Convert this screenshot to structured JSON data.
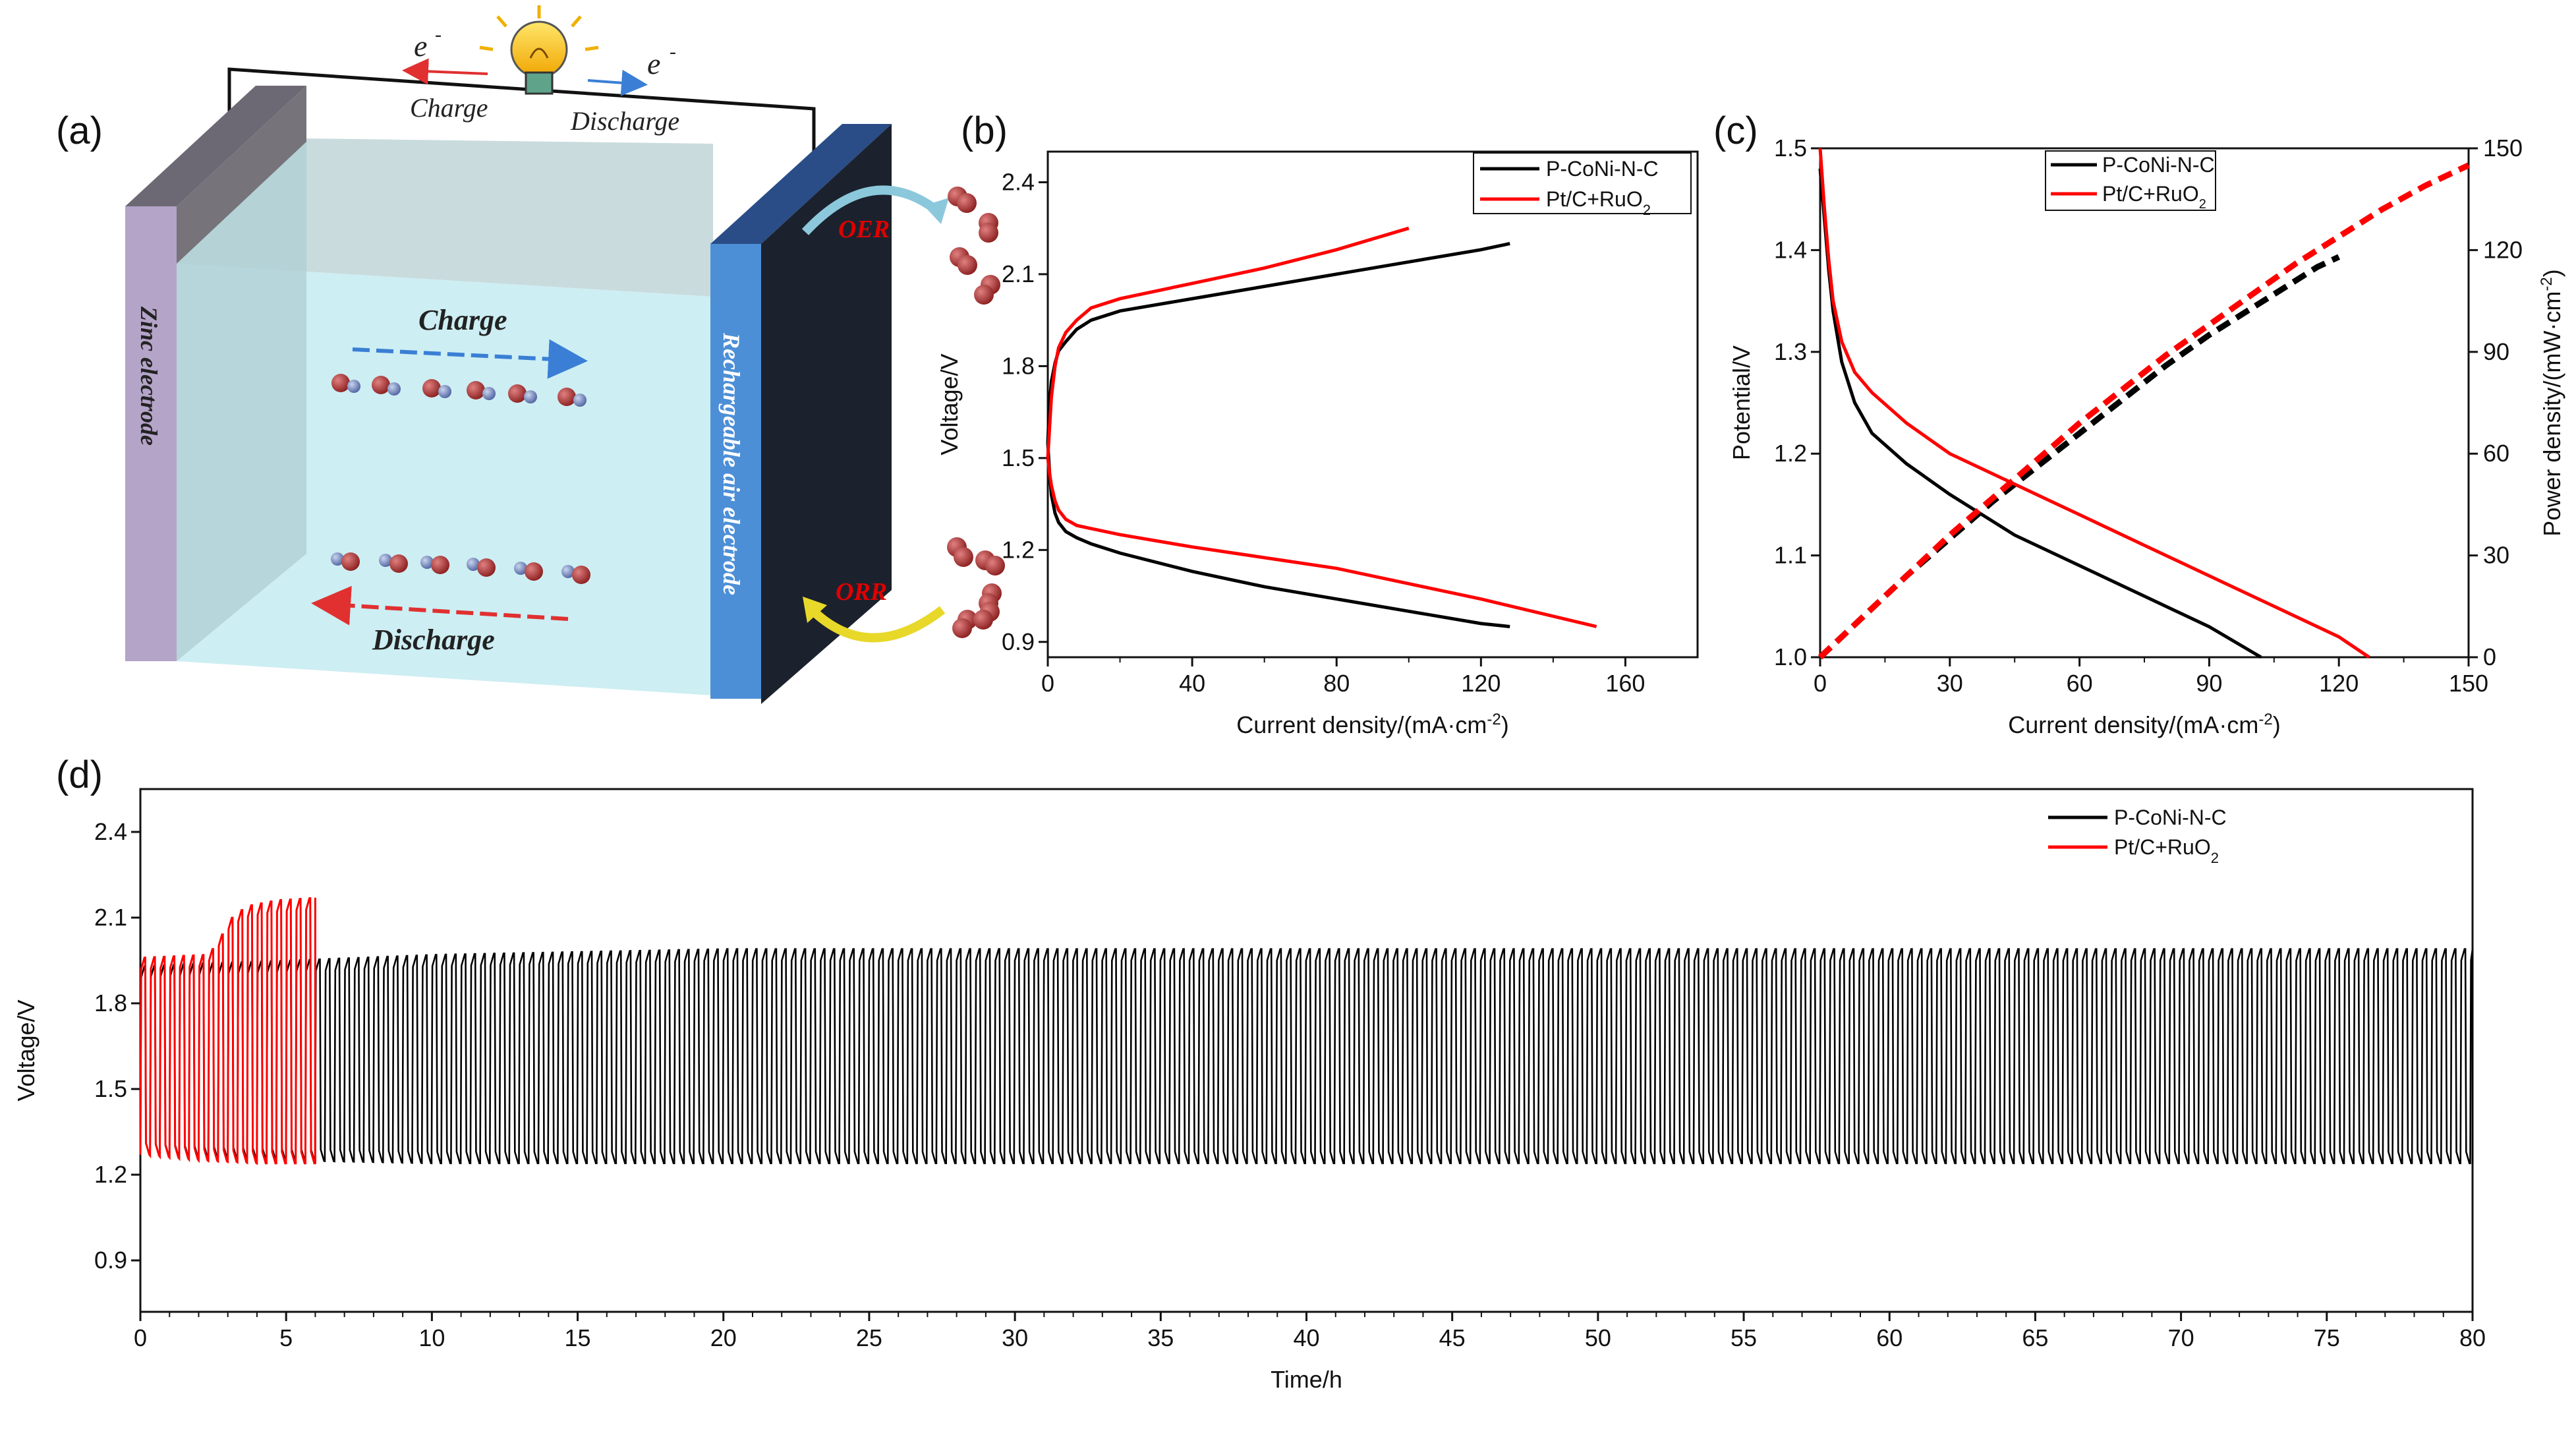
{
  "figure": {
    "labels": {
      "a": "(a)",
      "b": "(b)",
      "c": "(c)",
      "d": "(d)"
    }
  },
  "schematic": {
    "electron_left": "e",
    "electron_right": "e",
    "electron_sup": "-",
    "charge_top": "Charge",
    "discharge_top": "Discharge",
    "zinc_electrode": "Zinc electrode",
    "air_electrode": "Rechargeable air electrode",
    "charge_arrow": "Charge",
    "discharge_arrow": "Discharge",
    "oer": "OER",
    "orr": "ORR",
    "colors": {
      "charge_arrow": "#3a7fd5",
      "discharge_arrow": "#e03030",
      "oer_arrow": "#8cc8dc",
      "orr_arrow": "#e8d82a",
      "label_red": "#e00000"
    }
  },
  "chart_data": [
    {
      "id": "b",
      "type": "line",
      "xlabel": "Current density/(mA·cm",
      "xlabel_sup": "-2",
      "xlabel_tail": ")",
      "ylabel": "Voltage/V",
      "xlim": [
        0,
        180
      ],
      "ylim": [
        0.85,
        2.5
      ],
      "xticks": [
        0,
        40,
        80,
        120,
        160
      ],
      "yticks": [
        0.9,
        1.2,
        1.5,
        1.8,
        2.1,
        2.4
      ],
      "ytick_labels": [
        "0.9",
        "1.2",
        "1.5",
        "1.8",
        "2.1",
        "2.4"
      ],
      "legend_position": "top-right",
      "series": [
        {
          "name": "P-CoNi-N-C",
          "color": "#000000",
          "charge": {
            "x": [
              0,
              0.5,
              1,
              2,
              3,
              5,
              8,
              12,
              20,
              40,
              60,
              80,
              100,
              120,
              128
            ],
            "y": [
              1.55,
              1.68,
              1.75,
              1.81,
              1.85,
              1.88,
              1.92,
              1.95,
              1.98,
              2.02,
              2.06,
              2.1,
              2.14,
              2.18,
              2.2
            ]
          },
          "discharge": {
            "x": [
              0,
              0.5,
              1,
              2,
              3,
              5,
              8,
              12,
              20,
              40,
              60,
              80,
              100,
              120,
              128
            ],
            "y": [
              1.55,
              1.45,
              1.38,
              1.32,
              1.29,
              1.26,
              1.24,
              1.22,
              1.19,
              1.13,
              1.08,
              1.04,
              1.0,
              0.96,
              0.95
            ]
          }
        },
        {
          "name": "Pt/C+RuO",
          "name_sub": "2",
          "color": "#ff0000",
          "charge": {
            "x": [
              0,
              0.5,
              1,
              2,
              3,
              5,
              8,
              12,
              20,
              40,
              60,
              80,
              100
            ],
            "y": [
              1.5,
              1.6,
              1.7,
              1.8,
              1.86,
              1.91,
              1.95,
              1.99,
              2.02,
              2.07,
              2.12,
              2.18,
              2.25
            ]
          },
          "discharge": {
            "x": [
              0,
              0.5,
              1,
              2,
              3,
              5,
              8,
              12,
              20,
              40,
              80,
              120,
              152
            ],
            "y": [
              1.5,
              1.45,
              1.41,
              1.36,
              1.33,
              1.3,
              1.28,
              1.27,
              1.25,
              1.21,
              1.14,
              1.04,
              0.95
            ]
          }
        }
      ]
    },
    {
      "id": "c",
      "type": "line",
      "xlabel": "Current density/(mA·cm",
      "xlabel_sup": "-2",
      "xlabel_tail": ")",
      "ylabel": "Potential/V",
      "y2label": "Power density/(mW·cm",
      "y2label_sup": "-2",
      "y2label_tail": ")",
      "xlim": [
        0,
        150
      ],
      "ylim": [
        1.0,
        1.5
      ],
      "y2lim": [
        0,
        150
      ],
      "xticks": [
        0,
        30,
        60,
        90,
        120,
        150
      ],
      "yticks": [
        1.0,
        1.1,
        1.2,
        1.3,
        1.4,
        1.5
      ],
      "ytick_labels": [
        "1.0",
        "1.1",
        "1.2",
        "1.3",
        "1.4",
        "1.5"
      ],
      "y2ticks": [
        0,
        30,
        60,
        90,
        120,
        150
      ],
      "legend_position": "top-left",
      "series": [
        {
          "name": "P-CoNi-N-C",
          "color": "#000000",
          "polarization": {
            "x": [
              0,
              1,
              2,
              3,
              5,
              8,
              12,
              20,
              30,
              45,
              60,
              75,
              90,
              102
            ],
            "y": [
              1.48,
              1.43,
              1.38,
              1.34,
              1.29,
              1.25,
              1.22,
              1.19,
              1.16,
              1.12,
              1.09,
              1.06,
              1.03,
              1.0
            ]
          },
          "power": {
            "x": [
              0,
              10,
              20,
              30,
              40,
              50,
              60,
              70,
              80,
              90,
              100,
              110,
              115,
              120
            ],
            "y": [
              0,
              12,
              24,
              35,
              46,
              56,
              66,
              76,
              86,
              95,
              103,
              111,
              115,
              118
            ]
          }
        },
        {
          "name": "Pt/C+RuO",
          "name_sub": "2",
          "color": "#ff0000",
          "polarization": {
            "x": [
              0,
              1,
              2,
              3,
              5,
              8,
              12,
              20,
              30,
              45,
              60,
              75,
              90,
              105,
              120,
              127
            ],
            "y": [
              1.5,
              1.44,
              1.39,
              1.35,
              1.31,
              1.28,
              1.26,
              1.23,
              1.2,
              1.17,
              1.14,
              1.11,
              1.08,
              1.05,
              1.02,
              1.0
            ]
          },
          "power": {
            "x": [
              0,
              10,
              20,
              30,
              40,
              50,
              60,
              70,
              80,
              90,
              100,
              110,
              120,
              130,
              140,
              150
            ],
            "y": [
              0,
              12,
              24,
              36,
              47,
              58,
              69,
              79,
              89,
              98,
              107,
              116,
              124,
              132,
              139,
              145
            ]
          }
        }
      ]
    },
    {
      "id": "d",
      "type": "line",
      "xlabel": "Time/h",
      "ylabel": "Voltage/V",
      "xlim": [
        0,
        80
      ],
      "ylim": [
        0.72,
        2.55
      ],
      "xticks": [
        0,
        5,
        10,
        15,
        20,
        25,
        30,
        35,
        40,
        45,
        50,
        55,
        60,
        65,
        70,
        75,
        80
      ],
      "yticks": [
        0.9,
        1.2,
        1.5,
        1.8,
        2.1,
        2.4
      ],
      "ytick_labels": [
        "0.9",
        "1.2",
        "1.5",
        "1.8",
        "2.1",
        "2.4"
      ],
      "legend_position": "top-right",
      "cycle_period_h": 0.333,
      "series": [
        {
          "name": "P-CoNi-N-C",
          "color": "#000000",
          "t_range": [
            0,
            80
          ],
          "charge_voltage": {
            "t": [
              0,
              2,
              5,
              10,
              20,
              40,
              60,
              80
            ],
            "v": [
              1.93,
              1.94,
              1.95,
              1.97,
              1.99,
              1.99,
              1.99,
              1.99
            ]
          },
          "discharge_voltage": {
            "t": [
              0,
              2,
              5,
              10,
              20,
              40,
              60,
              80
            ],
            "v": [
              1.27,
              1.26,
              1.25,
              1.24,
              1.24,
              1.24,
              1.24,
              1.24
            ]
          }
        },
        {
          "name": "Pt/C+RuO",
          "name_sub": "2",
          "color": "#ff0000",
          "t_range": [
            0,
            6
          ],
          "charge_voltage": {
            "t": [
              0,
              2.2,
              2.6,
              3.0,
              3.5,
              4.5,
              6.0
            ],
            "v": [
              1.96,
              1.97,
              2.03,
              2.1,
              2.14,
              2.16,
              2.17
            ]
          },
          "discharge_voltage": {
            "t": [
              0,
              2,
              4,
              6
            ],
            "v": [
              1.27,
              1.25,
              1.24,
              1.24
            ]
          }
        }
      ]
    }
  ]
}
